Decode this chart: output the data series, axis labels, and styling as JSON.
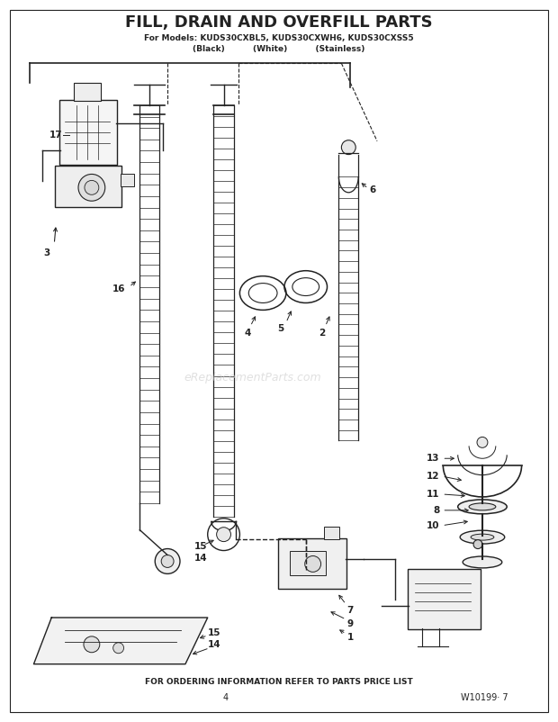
{
  "title": "FILL, DRAIN AND OVERFILL PARTS",
  "subtitle": "For Models: KUDS30CXBL5, KUDS30CXWH6, KUDS30CXSS5",
  "subtitle2": "(Black)          (White)          (Stainless)",
  "footer": "FOR ORDERING INFORMATION REFER TO PARTS PRICE LIST",
  "page_num": "4",
  "doc_num": "W10199· 7",
  "watermark": "eReplacementParts.com",
  "bg_color": "#ffffff",
  "fg_color": "#222222"
}
